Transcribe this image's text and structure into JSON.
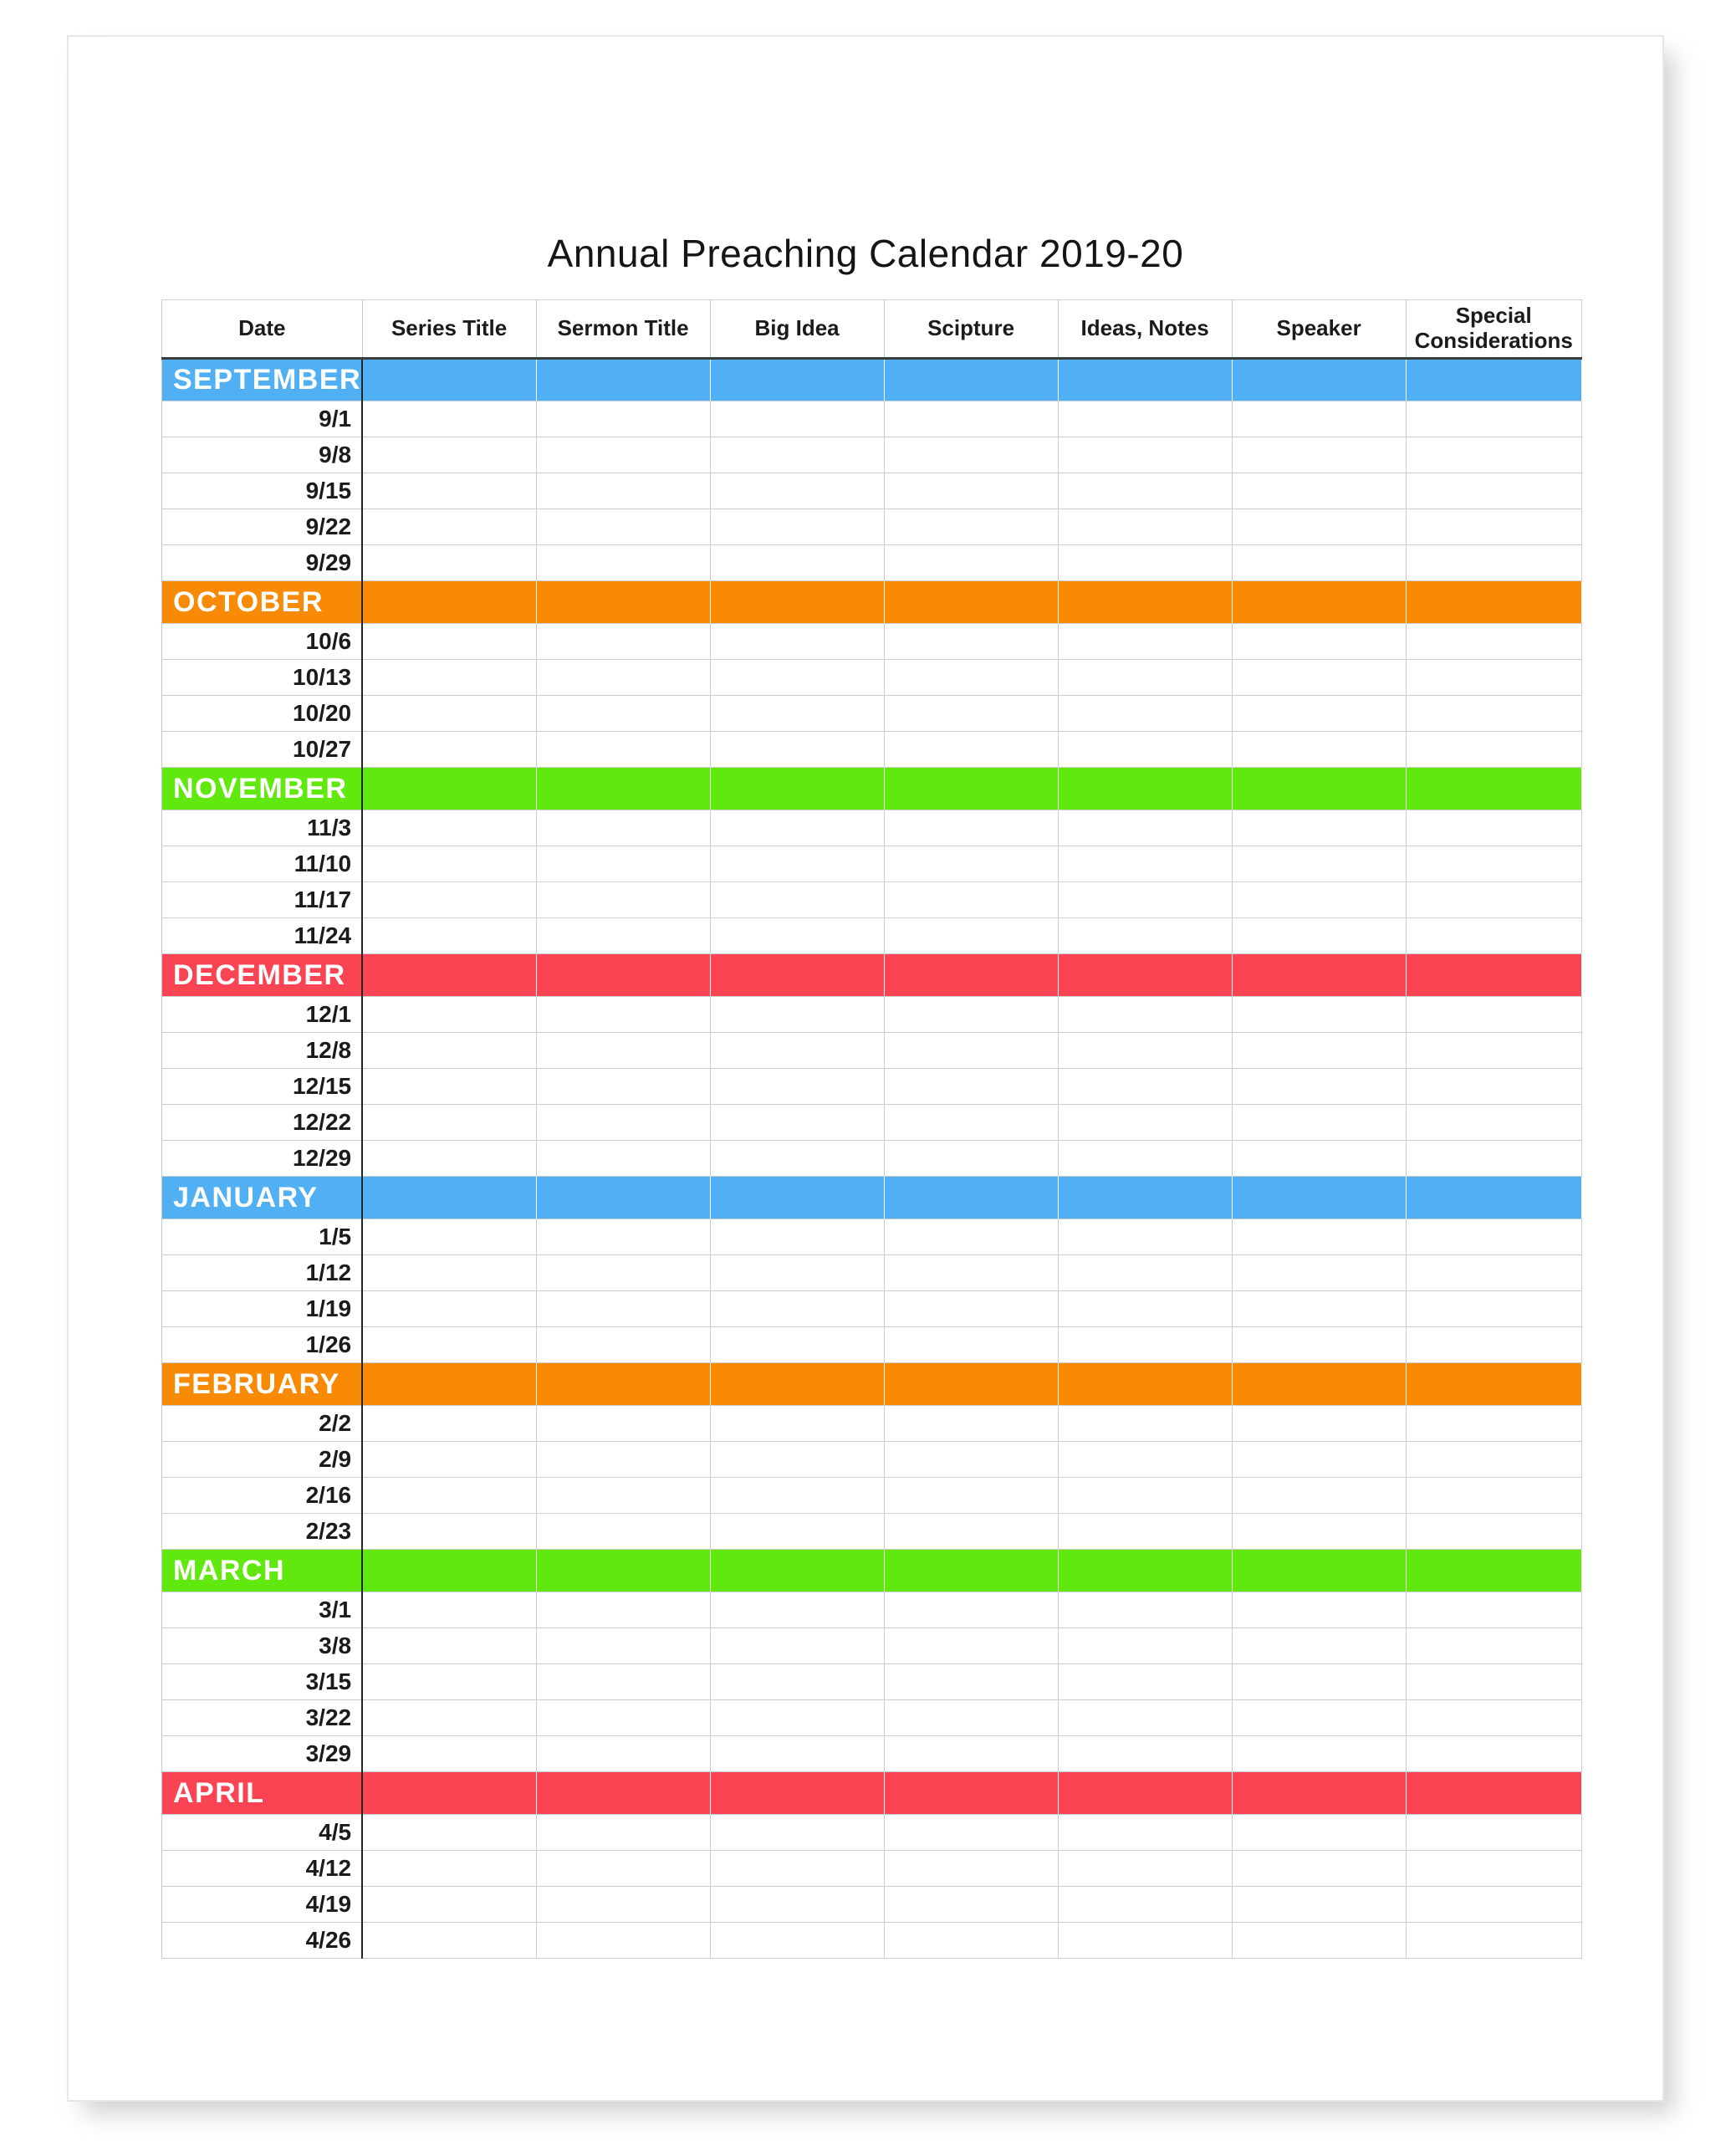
{
  "page": {
    "title": "Annual Preaching Calendar 2019-20"
  },
  "table": {
    "columns": [
      "Date",
      "Series Title",
      "Sermon Title",
      "Big Idea",
      "Scipture",
      "Ideas, Notes",
      "Speaker",
      "Special Considerations"
    ],
    "months": [
      {
        "name": "SEPTEMBER",
        "color": "#50b0f3",
        "dates": [
          "9/1",
          "9/8",
          "9/15",
          "9/22",
          "9/29"
        ]
      },
      {
        "name": "OCTOBER",
        "color": "#f88a06",
        "dates": [
          "10/6",
          "10/13",
          "10/20",
          "10/27"
        ]
      },
      {
        "name": "NOVEMBER",
        "color": "#61e80f",
        "dates": [
          "11/3",
          "11/10",
          "11/17",
          "11/24"
        ]
      },
      {
        "name": "DECEMBER",
        "color": "#fb4453",
        "dates": [
          "12/1",
          "12/8",
          "12/15",
          "12/22",
          "12/29"
        ]
      },
      {
        "name": "JANUARY",
        "color": "#50b0f3",
        "dates": [
          "1/5",
          "1/12",
          "1/19",
          "1/26"
        ]
      },
      {
        "name": "FEBRUARY",
        "color": "#f88a06",
        "dates": [
          "2/2",
          "2/9",
          "2/16",
          "2/23"
        ]
      },
      {
        "name": "MARCH",
        "color": "#61e80f",
        "dates": [
          "3/1",
          "3/8",
          "3/15",
          "3/22",
          "3/29"
        ]
      },
      {
        "name": "APRIL",
        "color": "#fb4453",
        "dates": [
          "4/5",
          "4/12",
          "4/19",
          "4/26"
        ]
      }
    ]
  },
  "colors": {
    "blue": "#50b0f3",
    "orange": "#f88a06",
    "green": "#61e80f",
    "red": "#fb4453",
    "gridline": "#c9cfcf",
    "header_rule": "#3a3d3e",
    "date_column_rule": "#232526"
  }
}
